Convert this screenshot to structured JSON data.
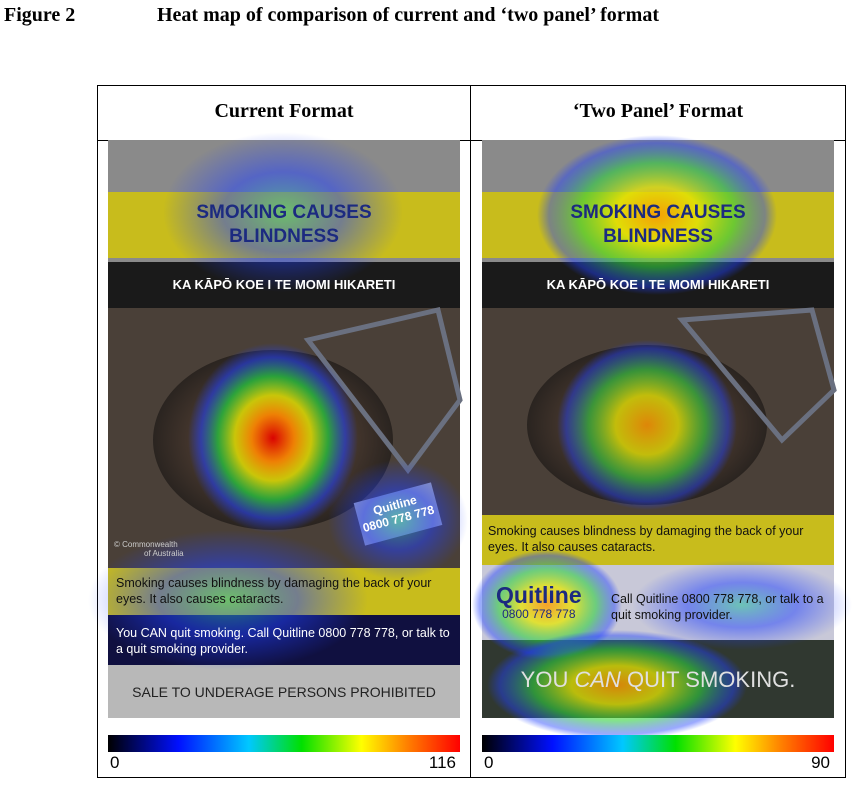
{
  "figure": {
    "label": "Figure 2",
    "caption": "Heat map of comparison of current and ‘two panel’ format"
  },
  "panels": [
    {
      "heading": "Current Format",
      "headline": [
        "SMOKING CAUSES",
        "BLINDNESS"
      ],
      "maori": "KA KĀPŌ KOE I TE MOMI HIKARETI",
      "credit": [
        "© Commonwealth",
        "of Australia"
      ],
      "stamp": [
        "Quitline",
        "0800 778 778"
      ],
      "body": "Smoking causes blindness by damaging the back of your eyes. It also causes cataracts.",
      "quit": "You CAN quit smoking. Call Quitline 0800 778 778, or talk to a quit smoking provider.",
      "footer": "SALE TO UNDERAGE PERSONS PROHIBITED",
      "scale": {
        "min": 0,
        "max": 116
      }
    },
    {
      "heading": "‘Two Panel’ Format",
      "headline": [
        "SMOKING CAUSES",
        "BLINDNESS"
      ],
      "maori": "KA KĀPŌ KOE I TE MOMI HIKARETI",
      "body": "Smoking causes blindness by damaging the back of your eyes. It also causes cataracts.",
      "logo": [
        "Quitline",
        "0800 778 778"
      ],
      "call": "Call Quitline 0800 778 778, or talk to a quit smoking provider.",
      "slogan": [
        "YOU ",
        "CAN",
        " QUIT SMOKING."
      ],
      "scale": {
        "min": 0,
        "max": 90
      }
    }
  ]
}
